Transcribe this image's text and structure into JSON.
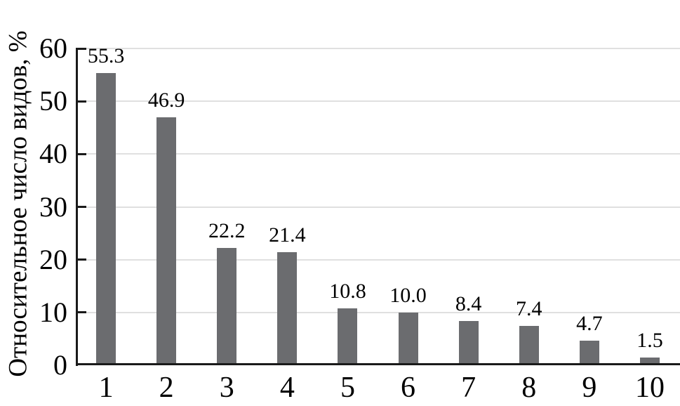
{
  "chart_data": {
    "type": "bar",
    "title": "",
    "xlabel": "",
    "ylabel": "Относительное число видов, %",
    "categories": [
      "1",
      "2",
      "3",
      "4",
      "5",
      "6",
      "7",
      "8",
      "9",
      "10"
    ],
    "values": [
      55.3,
      46.9,
      22.2,
      21.4,
      10.8,
      10.0,
      8.4,
      7.4,
      4.7,
      1.5
    ],
    "value_labels": [
      "55.3",
      "46.9",
      "22.2",
      "21.4",
      "10.8",
      "10.0",
      "8.4",
      "7.4",
      "4.7",
      "1.5"
    ],
    "ylim": [
      0,
      60
    ],
    "yticks": [
      0,
      10,
      20,
      30,
      40,
      50,
      60
    ],
    "grid": "horizontal",
    "legend": "none",
    "colors": {
      "bar": "#6b6c6f",
      "gridline": "#e0e0e0",
      "axis": "#1a1a1a",
      "text": "#000000"
    }
  }
}
